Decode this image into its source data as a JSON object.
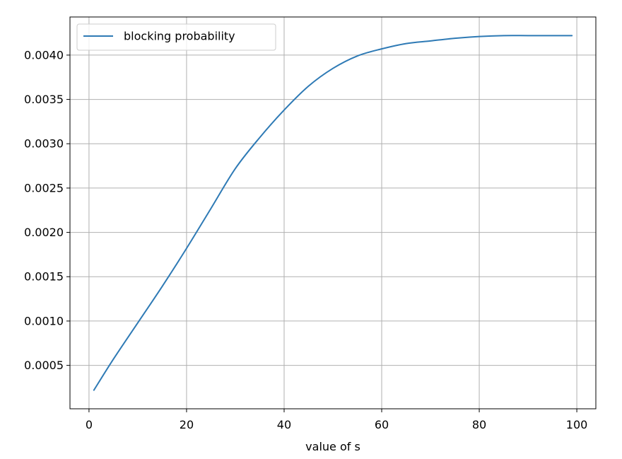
{
  "chart_data": {
    "type": "line",
    "title": "",
    "xlabel": "value of s",
    "ylabel": "",
    "xlim": [
      -3.9,
      103.9
    ],
    "ylim": [
      1e-05,
      0.00443
    ],
    "xticks": [
      0,
      20,
      40,
      60,
      80,
      100
    ],
    "xtick_labels": [
      "0",
      "20",
      "40",
      "60",
      "80",
      "100"
    ],
    "yticks": [
      0.0005,
      0.001,
      0.0015,
      0.002,
      0.0025,
      0.003,
      0.0035,
      0.004
    ],
    "ytick_labels": [
      "0.0005",
      "0.0010",
      "0.0015",
      "0.0020",
      "0.0025",
      "0.0030",
      "0.0035",
      "0.0040"
    ],
    "grid": true,
    "legend_position": "upper-left",
    "series": [
      {
        "name": "blocking probability",
        "color": "#2e7ab5",
        "x": [
          1,
          5,
          10,
          15,
          20,
          25,
          30,
          35,
          40,
          45,
          50,
          55,
          60,
          65,
          70,
          75,
          80,
          85,
          90,
          95,
          99
        ],
        "y": [
          0.00022,
          0.00057,
          0.00098,
          0.00139,
          0.00182,
          0.00227,
          0.00272,
          0.00307,
          0.00338,
          0.00365,
          0.00385,
          0.00399,
          0.00407,
          0.00413,
          0.00416,
          0.00419,
          0.00421,
          0.00422,
          0.00422,
          0.00422,
          0.00422
        ]
      }
    ]
  }
}
